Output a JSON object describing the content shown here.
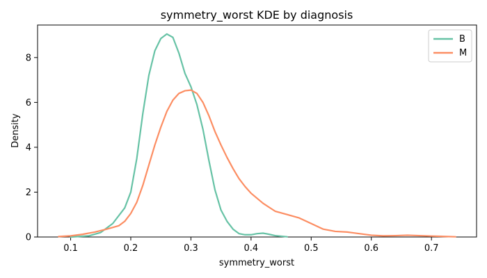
{
  "chart_data": {
    "type": "line",
    "title": "symmetry_worst KDE by diagnosis",
    "xlabel": "symmetry_worst",
    "ylabel": "Density",
    "xlim": [
      0.045,
      0.775
    ],
    "ylim": [
      0,
      9.45
    ],
    "xticks": [
      0.1,
      0.2,
      0.3,
      0.4,
      0.5,
      0.6,
      0.7
    ],
    "xtick_labels": [
      "0.1",
      "0.2",
      "0.3",
      "0.4",
      "0.5",
      "0.6",
      "0.7"
    ],
    "yticks": [
      0,
      2,
      4,
      6,
      8
    ],
    "ytick_labels": [
      "0",
      "2",
      "4",
      "6",
      "8"
    ],
    "grid": false,
    "legend": {
      "placement": "top-right"
    },
    "series": [
      {
        "name": "B",
        "color": "#66c2a5",
        "points": [
          [
            0.1,
            0.0
          ],
          [
            0.13,
            0.05
          ],
          [
            0.15,
            0.2
          ],
          [
            0.17,
            0.6
          ],
          [
            0.19,
            1.3
          ],
          [
            0.2,
            2.0
          ],
          [
            0.21,
            3.5
          ],
          [
            0.22,
            5.5
          ],
          [
            0.23,
            7.2
          ],
          [
            0.24,
            8.3
          ],
          [
            0.25,
            8.85
          ],
          [
            0.26,
            9.05
          ],
          [
            0.27,
            8.9
          ],
          [
            0.28,
            8.2
          ],
          [
            0.29,
            7.3
          ],
          [
            0.3,
            6.7
          ],
          [
            0.31,
            5.9
          ],
          [
            0.32,
            4.8
          ],
          [
            0.33,
            3.4
          ],
          [
            0.34,
            2.1
          ],
          [
            0.35,
            1.2
          ],
          [
            0.36,
            0.7
          ],
          [
            0.37,
            0.35
          ],
          [
            0.38,
            0.15
          ],
          [
            0.39,
            0.1
          ],
          [
            0.4,
            0.1
          ],
          [
            0.41,
            0.15
          ],
          [
            0.42,
            0.17
          ],
          [
            0.43,
            0.12
          ],
          [
            0.44,
            0.06
          ],
          [
            0.46,
            0.01
          ]
        ]
      },
      {
        "name": "M",
        "color": "#fc8d62",
        "points": [
          [
            0.08,
            0.02
          ],
          [
            0.1,
            0.05
          ],
          [
            0.12,
            0.12
          ],
          [
            0.14,
            0.22
          ],
          [
            0.16,
            0.35
          ],
          [
            0.18,
            0.5
          ],
          [
            0.19,
            0.7
          ],
          [
            0.2,
            1.05
          ],
          [
            0.21,
            1.55
          ],
          [
            0.22,
            2.3
          ],
          [
            0.23,
            3.2
          ],
          [
            0.24,
            4.1
          ],
          [
            0.25,
            4.9
          ],
          [
            0.26,
            5.6
          ],
          [
            0.27,
            6.1
          ],
          [
            0.28,
            6.4
          ],
          [
            0.29,
            6.52
          ],
          [
            0.3,
            6.55
          ],
          [
            0.31,
            6.4
          ],
          [
            0.32,
            6.0
          ],
          [
            0.33,
            5.4
          ],
          [
            0.34,
            4.7
          ],
          [
            0.35,
            4.1
          ],
          [
            0.36,
            3.55
          ],
          [
            0.37,
            3.05
          ],
          [
            0.38,
            2.6
          ],
          [
            0.39,
            2.25
          ],
          [
            0.4,
            1.95
          ],
          [
            0.42,
            1.5
          ],
          [
            0.44,
            1.15
          ],
          [
            0.46,
            1.0
          ],
          [
            0.48,
            0.85
          ],
          [
            0.5,
            0.6
          ],
          [
            0.52,
            0.35
          ],
          [
            0.54,
            0.25
          ],
          [
            0.56,
            0.22
          ],
          [
            0.58,
            0.15
          ],
          [
            0.6,
            0.08
          ],
          [
            0.62,
            0.05
          ],
          [
            0.64,
            0.06
          ],
          [
            0.66,
            0.08
          ],
          [
            0.68,
            0.06
          ],
          [
            0.7,
            0.04
          ],
          [
            0.74,
            0.01
          ]
        ]
      }
    ]
  }
}
